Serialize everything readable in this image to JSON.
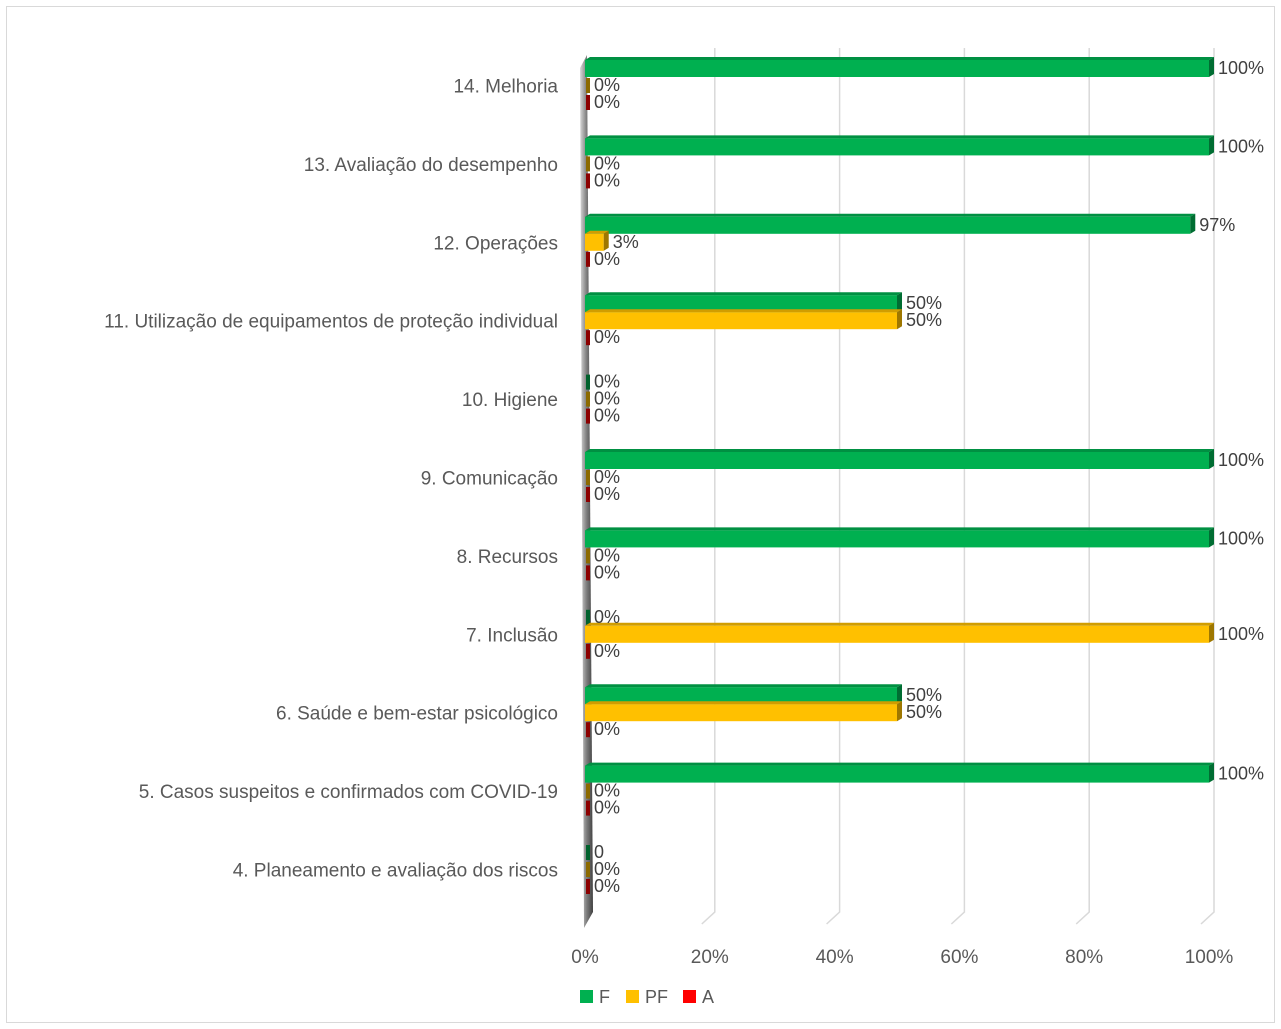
{
  "chart_data": {
    "type": "bar",
    "orientation": "horizontal",
    "title": "",
    "xlabel": "",
    "ylabel": "",
    "xlim": [
      0,
      100
    ],
    "x_ticks": [
      "0%",
      "20%",
      "40%",
      "60%",
      "80%",
      "100%"
    ],
    "grid": true,
    "legend_position": "bottom",
    "categories": [
      "14. Melhoria",
      "13. Avaliação do desempenho",
      "12. Operações",
      "11. Utilização de equipamentos de proteção individual",
      "10. Higiene",
      "9. Comunicação",
      "8. Recursos",
      "7. Inclusão",
      "6. Saúde e bem-estar psicológico",
      "5. Casos suspeitos e confirmados com COVID-19",
      "4. Planeamento e avaliação dos riscos"
    ],
    "series": [
      {
        "name": "F",
        "color": "#00b050",
        "values": [
          100,
          100,
          97,
          50,
          0,
          100,
          100,
          0,
          50,
          100,
          0
        ],
        "labels": [
          "100%",
          "100%",
          "97%",
          "50%",
          "0%",
          "100%",
          "100%",
          "0%",
          "50%",
          "100%",
          "0"
        ]
      },
      {
        "name": "PF",
        "color": "#ffc000",
        "values": [
          0,
          0,
          3,
          50,
          0,
          0,
          0,
          100,
          50,
          0,
          0
        ],
        "labels": [
          "0%",
          "0%",
          "3%",
          "50%",
          "0%",
          "0%",
          "0%",
          "100%",
          "50%",
          "0%",
          "0%"
        ]
      },
      {
        "name": "A",
        "color": "#ff0000",
        "values": [
          0,
          0,
          0,
          0,
          0,
          0,
          0,
          0,
          0,
          0,
          0
        ],
        "labels": [
          "0%",
          "0%",
          "0%",
          "0%",
          "0%",
          "0%",
          "0%",
          "0%",
          "0%",
          "0%",
          "0%"
        ]
      }
    ]
  }
}
